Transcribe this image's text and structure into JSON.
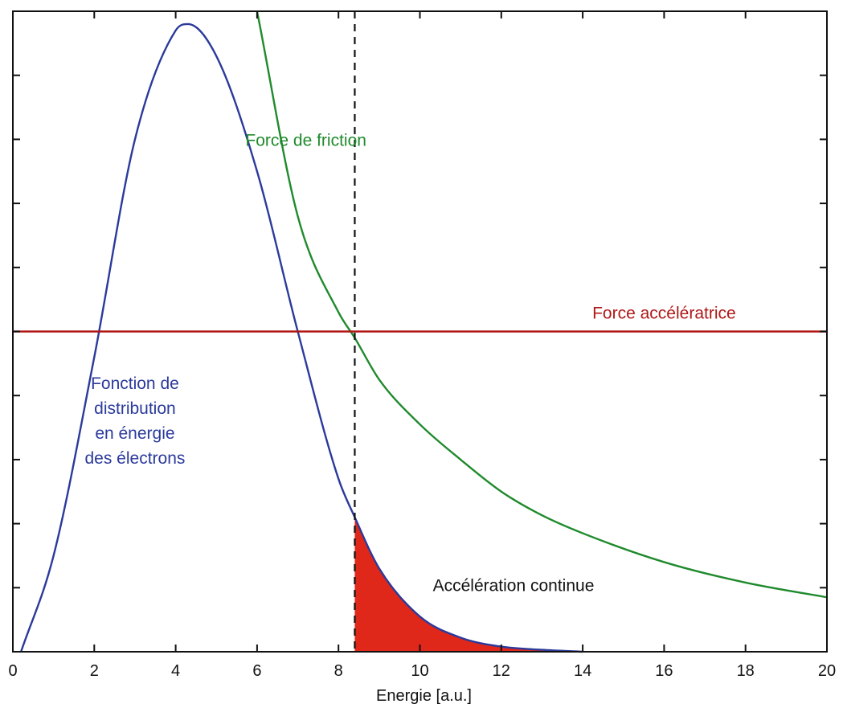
{
  "chart_data": {
    "type": "line",
    "xlabel": "Energie [a.u.]",
    "ylabel": "",
    "xlim": [
      0,
      20
    ],
    "ylim": [
      0,
      1
    ],
    "xticks": [
      "0",
      "2",
      "4",
      "6",
      "8",
      "10",
      "12",
      "14",
      "16",
      "18",
      "20"
    ],
    "yticks_count": 10,
    "grid": false,
    "series": [
      {
        "name": "Fonction de distribution en énergie des électrons",
        "color": "#2b3a9b",
        "peak_x": 4.3,
        "peak_y": 0.98,
        "x": [
          0.2,
          1,
          2,
          3,
          4,
          4.3,
          5,
          6,
          7,
          8,
          8.4,
          9,
          10,
          11,
          12,
          13,
          14
        ],
        "y": [
          0.0,
          0.15,
          0.46,
          0.8,
          0.97,
          0.98,
          0.93,
          0.75,
          0.5,
          0.27,
          0.21,
          0.13,
          0.055,
          0.022,
          0.008,
          0.003,
          0.0
        ]
      },
      {
        "name": "Force de friction",
        "color": "#1f8a2c",
        "x": [
          6.0,
          7.0,
          8.0,
          8.4,
          9.0,
          10.0,
          11.0,
          12.0,
          13.0,
          14.0,
          16.0,
          18.0,
          20.0
        ],
        "y": [
          1.0,
          0.68,
          0.53,
          0.49,
          0.425,
          0.355,
          0.3,
          0.25,
          0.213,
          0.185,
          0.14,
          0.108,
          0.085
        ]
      },
      {
        "name": "Force accélératrice",
        "color": "#b01818",
        "x": [
          0,
          20
        ],
        "y": [
          0.5,
          0.5
        ]
      }
    ],
    "threshold_x": 8.4,
    "shaded_region": {
      "label": "Accélération continue",
      "color": "#e0281a",
      "from_x": 8.4,
      "under_series": 0
    },
    "annotations": [
      {
        "lines": [
          "Fonction de",
          "distribution",
          "en énergie",
          "des électrons"
        ],
        "color": "#2b3a9b",
        "x": 3.0,
        "y": 0.41
      },
      {
        "lines": [
          "Force de friction"
        ],
        "color": "#1f8a2c",
        "x": 7.2,
        "y": 0.79
      },
      {
        "lines": [
          "Force accélératrice"
        ],
        "color": "#b01818",
        "x": 16.0,
        "y": 0.52
      },
      {
        "lines": [
          "Accélération continue"
        ],
        "color": "#111111",
        "x": 12.3,
        "y": 0.095
      }
    ]
  }
}
